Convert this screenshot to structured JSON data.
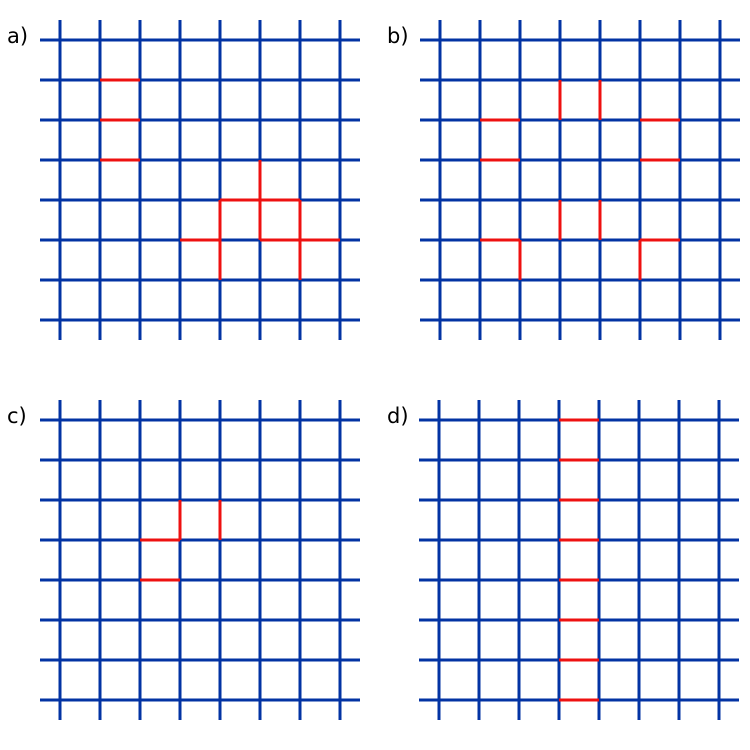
{
  "colors": {
    "grid": "#0333a3",
    "highlight": "#ee1111",
    "background": "#ffffff"
  },
  "grid": {
    "columns": 8,
    "rows": 8
  },
  "panels": [
    {
      "label": "a)",
      "red_edges": [
        [
          1,
          1,
          2,
          1
        ],
        [
          1,
          2,
          2,
          2
        ],
        [
          1,
          3,
          2,
          3
        ],
        [
          5,
          3,
          5,
          4
        ],
        [
          4,
          4,
          6,
          4
        ],
        [
          5,
          4,
          5,
          5
        ],
        [
          4,
          4,
          4,
          6
        ],
        [
          6,
          4,
          6,
          6
        ],
        [
          3,
          5,
          4,
          5
        ],
        [
          5,
          5,
          7,
          5
        ]
      ]
    },
    {
      "label": "b)",
      "red_edges": [
        [
          3,
          1,
          3,
          2
        ],
        [
          4,
          1,
          4,
          2
        ],
        [
          1,
          2,
          2,
          2
        ],
        [
          1,
          3,
          2,
          3
        ],
        [
          5,
          2,
          6,
          2
        ],
        [
          5,
          3,
          6,
          3
        ],
        [
          3,
          4,
          3,
          5
        ],
        [
          4,
          4,
          4,
          5
        ],
        [
          1,
          5,
          2,
          5
        ],
        [
          2,
          5,
          2,
          6
        ],
        [
          5,
          5,
          6,
          5
        ],
        [
          5,
          5,
          5,
          6
        ]
      ]
    },
    {
      "label": "c)",
      "red_edges": [
        [
          3,
          2,
          3,
          3
        ],
        [
          4,
          2,
          4,
          3
        ],
        [
          2,
          3,
          3,
          3
        ],
        [
          2,
          4,
          3,
          4
        ]
      ]
    },
    {
      "label": "d)",
      "red_edges": [
        [
          3,
          0,
          4,
          0
        ],
        [
          3,
          1,
          4,
          1
        ],
        [
          3,
          2,
          4,
          2
        ],
        [
          3,
          3,
          4,
          3
        ],
        [
          3,
          4,
          4,
          4
        ],
        [
          3,
          5,
          4,
          5
        ],
        [
          3,
          6,
          4,
          6
        ],
        [
          3,
          7,
          4,
          7
        ]
      ]
    }
  ]
}
